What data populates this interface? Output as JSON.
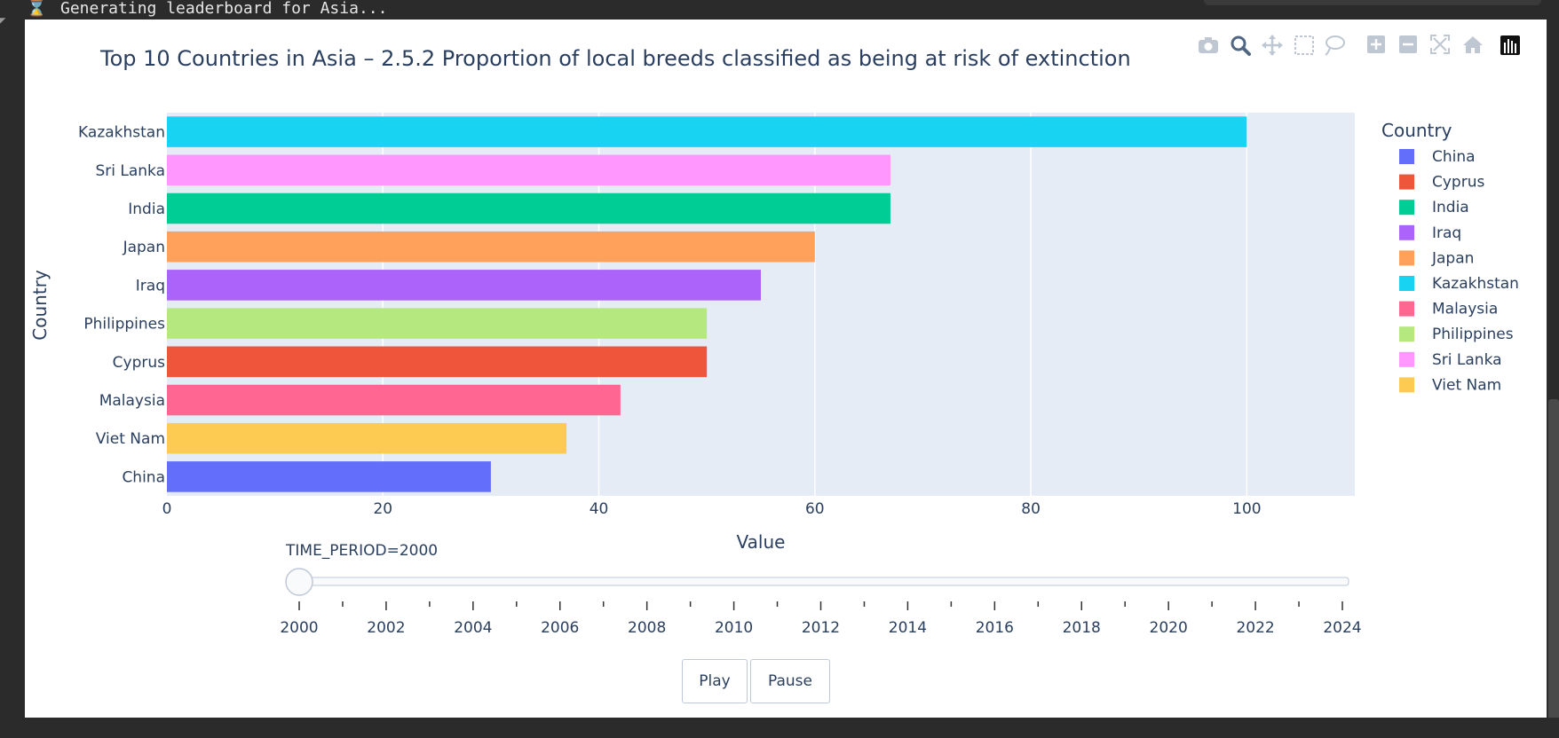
{
  "status_bar": {
    "message": "Generating leaderboard for Asia..."
  },
  "chart_data": {
    "type": "bar",
    "orientation": "horizontal",
    "title": "Top 10 Countries in Asia – 2.5.2 Proportion of local breeds classified as being at risk of extinction",
    "xlabel": "Value",
    "ylabel": "Country",
    "xlim": [
      0,
      110
    ],
    "xticks": [
      0,
      20,
      40,
      60,
      80,
      100
    ],
    "grid": true,
    "legend_title": "Country",
    "legend_position": "right",
    "categories": [
      "Kazakhstan",
      "Sri Lanka",
      "India",
      "Japan",
      "Iraq",
      "Philippines",
      "Cyprus",
      "Malaysia",
      "Viet Nam",
      "China"
    ],
    "values": [
      100,
      67,
      67,
      60,
      55,
      50,
      50,
      42,
      37,
      30
    ],
    "colors": {
      "China": "#636efa",
      "Cyprus": "#ef553b",
      "India": "#00cc96",
      "Iraq": "#ab63fa",
      "Japan": "#ffa15a",
      "Kazakhstan": "#19d3f3",
      "Malaysia": "#ff6692",
      "Philippines": "#b6e880",
      "Sri Lanka": "#ff97ff",
      "Viet Nam": "#fecb52"
    },
    "legend": [
      "China",
      "Cyprus",
      "India",
      "Iraq",
      "Japan",
      "Kazakhstan",
      "Malaysia",
      "Philippines",
      "Sri Lanka",
      "Viet Nam"
    ]
  },
  "slider": {
    "label": "TIME_PERIOD=2000",
    "current": 2000,
    "min": 2000,
    "max": 2024,
    "tick_labels": [
      "2000",
      "2002",
      "2004",
      "2006",
      "2008",
      "2010",
      "2012",
      "2014",
      "2016",
      "2018",
      "2020",
      "2022",
      "2024"
    ]
  },
  "controls": {
    "play_label": "Play",
    "pause_label": "Pause"
  },
  "modebar": [
    "camera-icon",
    "zoom-icon",
    "pan-icon",
    "box-select-icon",
    "lasso-icon",
    "zoom-in-icon",
    "zoom-out-icon",
    "autoscale-icon",
    "home-icon",
    "plotly-logo-icon"
  ],
  "theme": {
    "plot_bg": "#e5ecf6",
    "text": "#2a3f5f",
    "modebar_active": "#506784",
    "modebar_inactive": "#bfc7d3"
  }
}
